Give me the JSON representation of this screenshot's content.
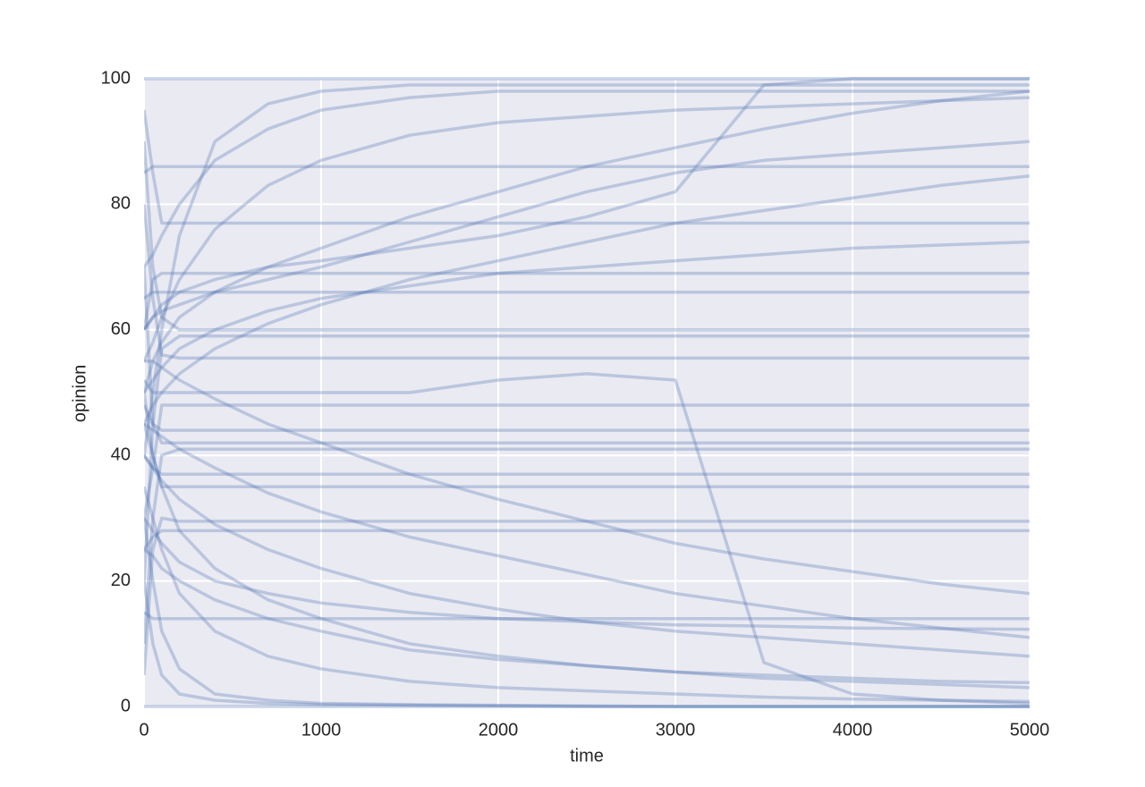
{
  "chart_data": {
    "type": "line",
    "xlabel": "time",
    "ylabel": "opinion",
    "color": "#4c72b0",
    "opacity": 0.3,
    "grid": true,
    "background": "#eaeaf2",
    "xlim": [
      0,
      5000
    ],
    "xticks": [
      0,
      1000,
      2000,
      3000,
      4000,
      5000
    ],
    "ylim": [
      0,
      100
    ],
    "yticks": [
      0,
      20,
      40,
      60,
      80,
      100
    ],
    "x": [
      0,
      50,
      100,
      200,
      400,
      700,
      1000,
      1500,
      2000,
      2500,
      3000,
      3500,
      4000,
      4500,
      5000
    ],
    "series": [
      {
        "values": [
          90,
          70,
          62,
          60,
          60,
          60,
          60,
          60,
          60,
          60,
          60,
          60,
          60,
          60,
          60
        ]
      },
      {
        "values": [
          20,
          45,
          57,
          59,
          59,
          59,
          59,
          59,
          59,
          59,
          59,
          59,
          59,
          59,
          59
        ]
      },
      {
        "values": [
          80,
          65,
          56,
          55.5,
          55.5,
          55.5,
          55.5,
          55.5,
          55.5,
          55.5,
          55.5,
          55.5,
          55.5,
          55.5,
          55.5
        ]
      },
      {
        "values": [
          10,
          30,
          40,
          41,
          41,
          41,
          41,
          41,
          41,
          41,
          41,
          41,
          41,
          41,
          41
        ]
      },
      {
        "values": [
          70,
          45,
          42,
          42,
          42,
          42,
          42,
          42,
          42,
          42,
          42,
          42,
          42,
          42,
          42
        ]
      },
      {
        "values": [
          50,
          40,
          35,
          35,
          35,
          35,
          35,
          35,
          35,
          35,
          35,
          35,
          35,
          35,
          35
        ]
      },
      {
        "values": [
          5,
          25,
          30,
          29.5,
          29.5,
          29.5,
          29.5,
          29.5,
          29.5,
          29.5,
          29.5,
          29.5,
          29.5,
          29.5,
          29.5
        ]
      },
      {
        "values": [
          95,
          85,
          77,
          77,
          77,
          77,
          77,
          77,
          77,
          77,
          77,
          77,
          77,
          77,
          77
        ]
      },
      {
        "values": [
          60,
          68,
          69,
          69,
          69,
          69,
          69,
          69,
          69,
          69,
          69,
          69,
          69,
          69,
          69
        ]
      },
      {
        "values": [
          30,
          38,
          48,
          48,
          48,
          48,
          48,
          48,
          48,
          48,
          48,
          48,
          48,
          48,
          48
        ]
      },
      {
        "values": [
          55,
          55,
          54,
          52,
          49,
          45,
          42,
          37,
          33,
          29.5,
          26,
          23.5,
          21.5,
          19.5,
          18
        ]
      },
      {
        "values": [
          40,
          38,
          36,
          33,
          29,
          25,
          22,
          18,
          15.5,
          13.5,
          12,
          11,
          10,
          9,
          8
        ]
      },
      {
        "values": [
          45,
          40,
          35,
          28,
          22,
          17,
          14,
          10,
          8,
          6.5,
          5.5,
          4.5,
          4,
          3.5,
          3
        ]
      },
      {
        "values": [
          35,
          30,
          25,
          18,
          12,
          8,
          6,
          4,
          3,
          2.5,
          2,
          1.5,
          1.2,
          1,
          0.8
        ]
      },
      {
        "values": [
          30,
          28,
          26,
          23,
          20,
          18,
          16.5,
          15,
          14,
          13.5,
          13,
          12.8,
          12.5,
          12.4,
          12.3
        ]
      },
      {
        "values": [
          50,
          55,
          58,
          62,
          66,
          70,
          73,
          78,
          82,
          86,
          89,
          92,
          94.5,
          96.5,
          98
        ]
      },
      {
        "values": [
          45,
          48,
          50,
          53,
          57,
          61,
          64,
          68,
          71,
          74,
          77,
          79,
          81,
          83,
          84.5
        ]
      },
      {
        "values": [
          60,
          62,
          63,
          64,
          66,
          68,
          70,
          74,
          78,
          82,
          85,
          87,
          88,
          89,
          90
        ]
      },
      {
        "values": [
          55,
          58,
          62,
          68,
          76,
          83,
          87,
          91,
          93,
          94,
          95,
          95.5,
          96,
          96.5,
          97
        ]
      },
      {
        "values": [
          40,
          50,
          60,
          75,
          90,
          96,
          98,
          99,
          99,
          99,
          99,
          99,
          99,
          99,
          99
        ]
      },
      {
        "values": [
          50,
          52,
          54,
          57,
          60,
          63,
          65,
          67,
          69,
          70,
          71,
          72,
          73,
          73.5,
          74
        ]
      },
      {
        "values": [
          70,
          72,
          75,
          80,
          87,
          92,
          95,
          97,
          98,
          98,
          98,
          98,
          98,
          98,
          98
        ]
      },
      {
        "values": [
          30,
          20,
          12,
          6,
          2,
          1,
          0.5,
          0.3,
          0.2,
          0.1,
          0,
          0,
          0,
          0,
          0
        ]
      },
      {
        "values": [
          20,
          10,
          5,
          2,
          1,
          0.5,
          0.3,
          0.2,
          0.1,
          0,
          0,
          0,
          0,
          0,
          0
        ]
      },
      {
        "values": [
          45,
          44,
          43,
          41,
          38,
          34,
          31,
          27,
          24,
          21,
          18,
          16,
          14,
          12.5,
          11
        ]
      },
      {
        "values": [
          25,
          24,
          22,
          20,
          17,
          14,
          12,
          9,
          7.5,
          6.5,
          5.5,
          5,
          4.5,
          4,
          3.8
        ]
      },
      {
        "values": [
          52,
          50,
          50,
          50,
          50,
          50,
          50,
          50,
          52,
          53,
          52,
          7,
          2,
          1,
          0.5
        ]
      },
      {
        "values": [
          60,
          62,
          64,
          66,
          68,
          70,
          71,
          73,
          75,
          78,
          82,
          99,
          100,
          100,
          100
        ]
      },
      {
        "values": [
          40,
          38,
          37,
          37,
          37,
          37,
          37,
          37,
          37,
          37,
          37,
          37,
          37,
          37,
          37
        ]
      },
      {
        "values": [
          65,
          66,
          66,
          66,
          66,
          66,
          66,
          66,
          66,
          66,
          66,
          66,
          66,
          66,
          66
        ]
      },
      {
        "values": [
          25,
          27,
          28,
          28,
          28,
          28,
          28,
          28,
          28,
          28,
          28,
          28,
          28,
          28,
          28
        ]
      },
      {
        "values": [
          85,
          86,
          86,
          86,
          86,
          86,
          86,
          86,
          86,
          86,
          86,
          86,
          86,
          86,
          86
        ]
      },
      {
        "values": [
          15,
          14,
          14,
          14,
          14,
          14,
          14,
          14,
          14,
          14,
          14,
          14,
          14,
          14,
          14
        ]
      },
      {
        "values": [
          48,
          45,
          44,
          44,
          44,
          44,
          44,
          44,
          44,
          44,
          44,
          44,
          44,
          44,
          44
        ]
      },
      {
        "values": [
          100,
          100,
          100,
          100,
          100,
          100,
          100,
          100,
          100,
          100,
          100,
          100,
          100,
          100,
          100
        ]
      },
      {
        "values": [
          0,
          0,
          0,
          0,
          0,
          0,
          0,
          0,
          0,
          0,
          0,
          0,
          0,
          0,
          0
        ]
      }
    ]
  }
}
